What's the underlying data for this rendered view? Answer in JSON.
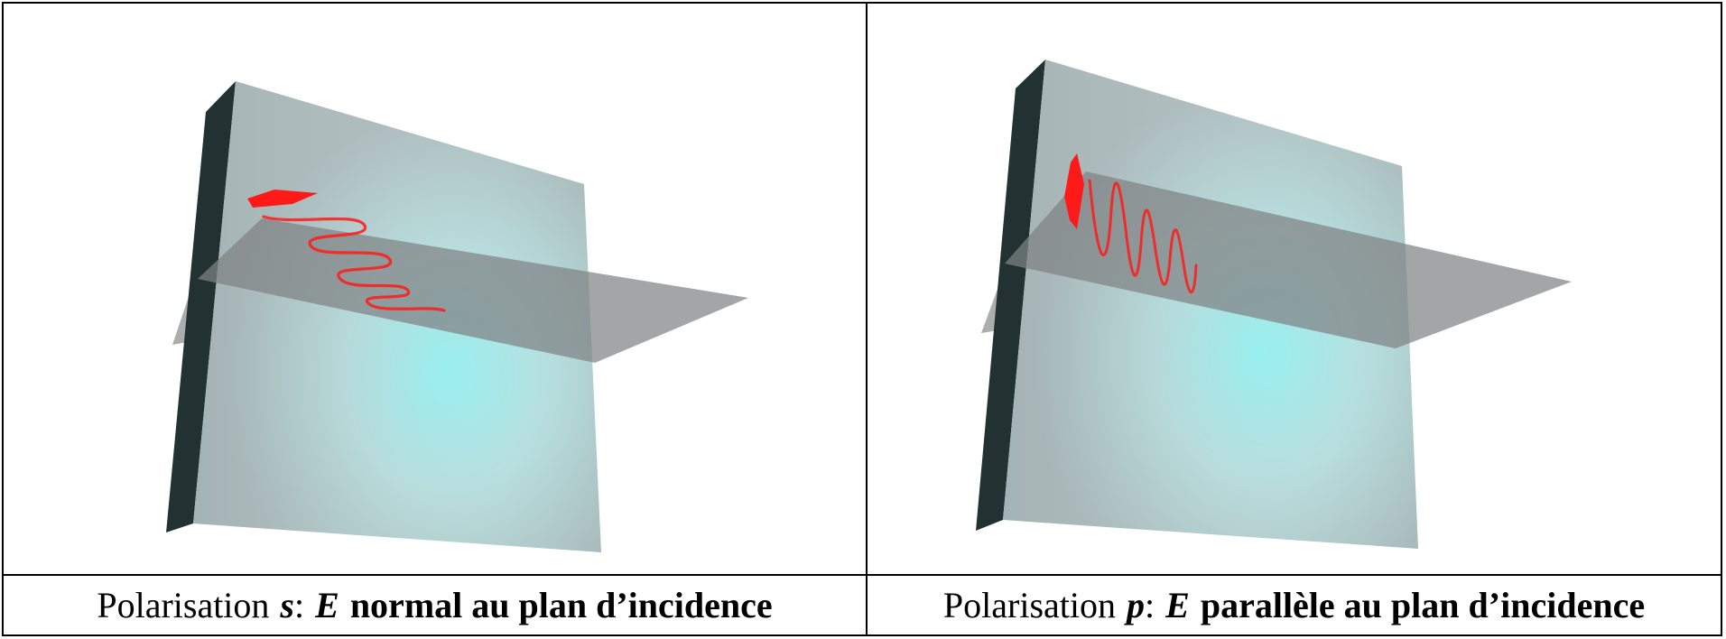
{
  "panels": [
    {
      "caption": {
        "prefix": "Polarisation",
        "pol_letter": "s",
        "colon": ":",
        "field_symbol": "E",
        "description": "normal au plan d’incidence"
      },
      "wave_orientation": "normal"
    },
    {
      "caption": {
        "prefix": "Polarisation",
        "pol_letter": "p",
        "colon": ":",
        "field_symbol": "E",
        "description": "parallèle au plan d’incidence"
      },
      "wave_orientation": "parallel"
    }
  ],
  "colors": {
    "wave": "#ff1a1a",
    "slab_face": "#b9c9cb",
    "slab_edge": "#223233",
    "slab_glow": "#8ff2f2",
    "plane": "#808080"
  }
}
